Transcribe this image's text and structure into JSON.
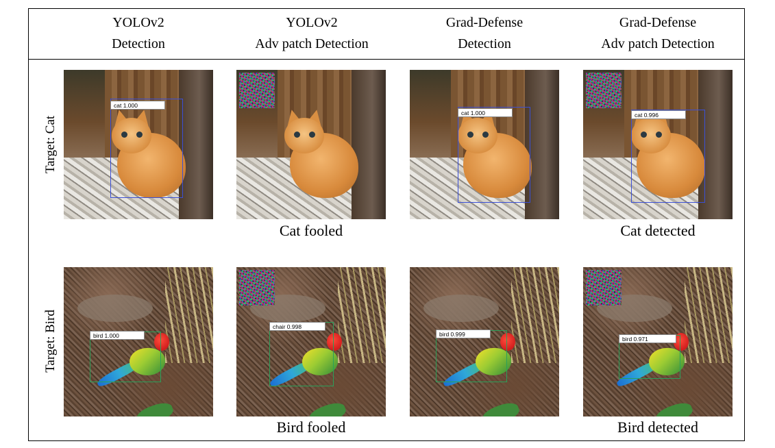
{
  "columns": [
    {
      "line1": "YOLOv2",
      "line2": "Detection"
    },
    {
      "line1": "YOLOv2",
      "line2": "Adv patch Detection"
    },
    {
      "line1": "Grad-Defense",
      "line2": "Detection"
    },
    {
      "line1": "Grad-Defense",
      "line2": "Adv patch Detection"
    }
  ],
  "rows": [
    {
      "label": "Target: Cat",
      "detections": [
        "cat  1.000",
        "",
        "cat  1.000",
        "cat  0.996"
      ],
      "captions": [
        "",
        "Cat fooled",
        "",
        "Cat detected"
      ]
    },
    {
      "label": "Target: Bird",
      "detections": [
        "bird  1.000",
        "chair  0.998",
        "bird  0.999",
        "bird  0.971"
      ],
      "captions": [
        "",
        "Bird fooled",
        "",
        "Bird detected"
      ]
    }
  ],
  "colors": {
    "box_cat": "#3a4fd6",
    "box_bird": "#2aa05a"
  }
}
